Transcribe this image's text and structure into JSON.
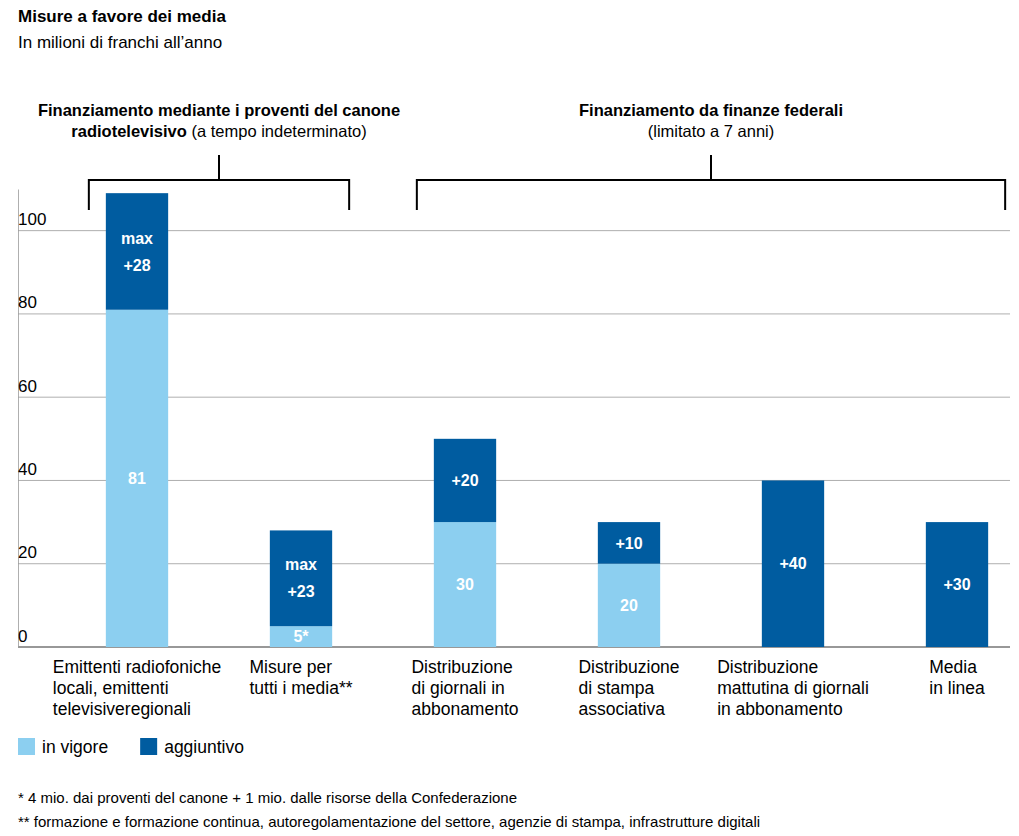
{
  "chart_data": {
    "type": "bar",
    "title": "Misure a favore dei media",
    "subtitle": "In milioni di franchi all’anno",
    "stacked": true,
    "data_labels": true,
    "grid": true,
    "legend": "bottom-left",
    "ylim": [
      0,
      110
    ],
    "yticks": [
      0,
      20,
      40,
      60,
      80,
      100
    ],
    "groups": [
      {
        "title": "Finanziamento mediante i proventi del canone\nradiotelevisivo",
        "note": "(a tempo indeterminato)",
        "count": 2
      },
      {
        "title": "Finanziamento da finanze federali",
        "note": "(limitato a 7 anni)",
        "count": 4
      }
    ],
    "categories": [
      "Emittenti radiofoniche\nlocali, emittenti\ntelevisiveregionali",
      "Misure per\ntutti i media**",
      "Distribuzione\ndi giornali in\nabbonamento",
      "Distribuzione\ndi stampa\nassociativa",
      "Distribuzione\nmattutina di giornali\nin abbonamento",
      "Media\nin linea"
    ],
    "series": [
      {
        "name": "in vigore",
        "color": "#8ccff0",
        "values": [
          81,
          5,
          30,
          20,
          null,
          null
        ],
        "value_labels": [
          "81",
          "5*",
          "30",
          "20",
          null,
          null
        ]
      },
      {
        "name": "aggiuntivo",
        "color": "#005ca0",
        "values": [
          28,
          23,
          20,
          10,
          40,
          30
        ],
        "value_labels": [
          "max\n+28",
          "max\n+23",
          "+20",
          "+10",
          "+40",
          "+30"
        ]
      }
    ],
    "footnotes": [
      "* 4 mio. dai proventi del canone + 1 mio. dalle risorse della Confederazione",
      "** formazione e formazione continua, autoregolamentazione del settore, agenzie di stampa, infrastrutture digitali"
    ]
  }
}
